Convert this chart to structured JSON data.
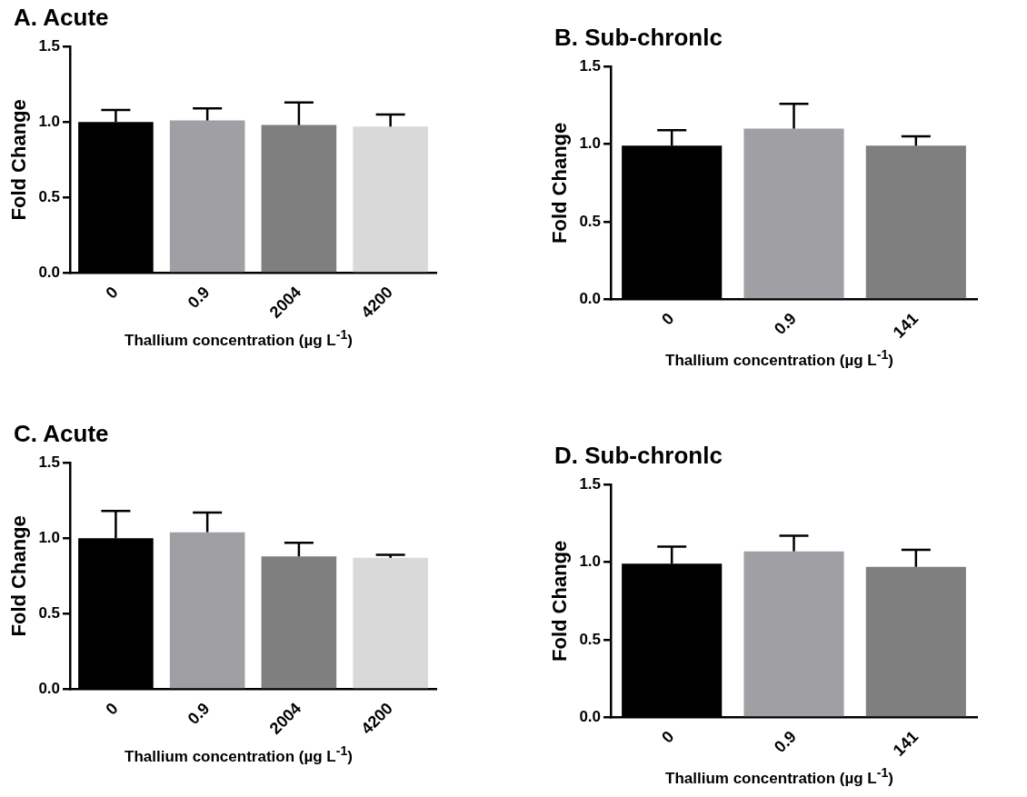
{
  "chart_data": [
    {
      "type": "bar",
      "title": "A. Acute",
      "xlabel": "Thallium concentration (µg L$^{-1}$)",
      "ylabel": "Fold Change",
      "categories": [
        "0",
        "0.9",
        "2004",
        "4200"
      ],
      "values": [
        1.0,
        1.01,
        0.98,
        0.97
      ],
      "colors": [
        "#000000",
        "#a0a0a4",
        "#7f7f7f",
        "#d9d9d9"
      ],
      "errors": [
        [
          1.0,
          1.08
        ],
        [
          1.01,
          1.09
        ],
        [
          0.98,
          1.13
        ],
        [
          0.97,
          1.05
        ]
      ],
      "ylim": [
        0,
        1.5
      ],
      "yticks": [
        {
          "value": 0,
          "label": "0.0"
        },
        {
          "value": 0.5,
          "label": "0.5"
        },
        {
          "value": 1,
          "label": "1.0"
        },
        {
          "value": 1.5,
          "label": "1.5"
        }
      ],
      "grid": false
    },
    {
      "type": "bar",
      "title": "B. Sub-chronlc",
      "xlabel": "Thallium concentration (µg L$^{-1}$)",
      "ylabel": "Fold Change",
      "categories": [
        "0",
        "0.9",
        "141"
      ],
      "values": [
        0.99,
        1.1,
        0.99
      ],
      "colors": [
        "#000000",
        "#a0a0a4",
        "#7f7f7f"
      ],
      "errors": [
        [
          0.99,
          1.09
        ],
        [
          1.1,
          1.26
        ],
        [
          0.99,
          1.05
        ]
      ],
      "ylim": [
        0,
        1.5
      ],
      "yticks": [
        {
          "value": 0,
          "label": "0.0"
        },
        {
          "value": 0.5,
          "label": "0.5"
        },
        {
          "value": 1,
          "label": "1.0"
        },
        {
          "value": 1.5,
          "label": "1.5"
        }
      ],
      "grid": false
    },
    {
      "type": "bar",
      "title": "C. Acute",
      "xlabel": "Thallium concentration (µg L$^{-1}$)",
      "ylabel": "Fold Change",
      "categories": [
        "0",
        "0.9",
        "2004",
        "4200"
      ],
      "values": [
        1.0,
        1.04,
        0.88,
        0.87
      ],
      "colors": [
        "#000000",
        "#a0a0a4",
        "#7f7f7f",
        "#d9d9d9"
      ],
      "errors": [
        [
          1.0,
          1.18
        ],
        [
          1.04,
          1.17
        ],
        [
          0.88,
          0.97
        ],
        [
          0.87,
          0.89
        ]
      ],
      "ylim": [
        0,
        1.5
      ],
      "yticks": [
        {
          "value": 0,
          "label": "0.0"
        },
        {
          "value": 0.5,
          "label": "0.5"
        },
        {
          "value": 1,
          "label": "1.0"
        },
        {
          "value": 1.5,
          "label": "1.5"
        }
      ],
      "grid": false
    },
    {
      "type": "bar",
      "title": "D. Sub-chronlc",
      "xlabel": "Thallium concentration (µg L$^{-1}$)",
      "ylabel": "Fold Change",
      "categories": [
        "0",
        "0.9",
        "141"
      ],
      "values": [
        0.99,
        1.07,
        0.97
      ],
      "colors": [
        "#000000",
        "#a0a0a4",
        "#7f7f7f"
      ],
      "errors": [
        [
          0.99,
          1.1
        ],
        [
          1.07,
          1.17
        ],
        [
          0.97,
          1.08
        ]
      ],
      "ylim": [
        0,
        1.5
      ],
      "yticks": [
        {
          "value": 0,
          "label": "0.0"
        },
        {
          "value": 0.5,
          "label": "0.5"
        },
        {
          "value": 1,
          "label": "1.0"
        },
        {
          "value": 1.5,
          "label": "1.5"
        }
      ],
      "grid": false
    }
  ]
}
